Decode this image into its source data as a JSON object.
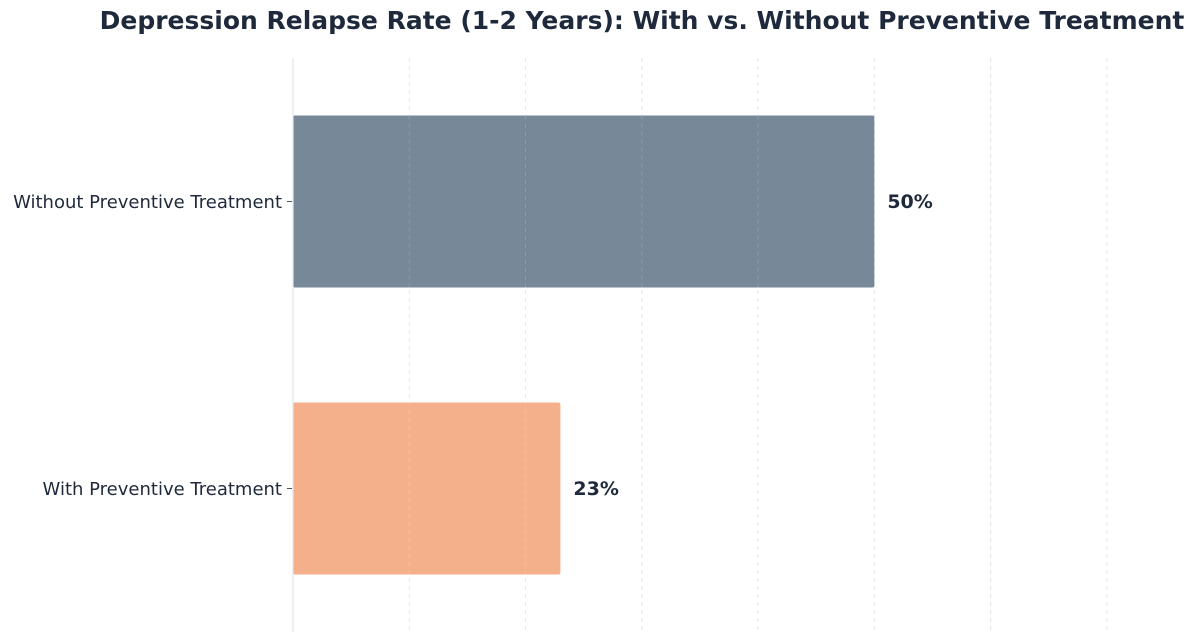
{
  "chart_data": {
    "type": "bar",
    "orientation": "horizontal",
    "title": "Depression Relapse Rate (1-2 Years): With vs. Without Preventive Treatment",
    "xlabel": "",
    "ylabel": "",
    "categories": [
      "Without Preventive Treatment",
      "With Preventive Treatment"
    ],
    "values": [
      50,
      23
    ],
    "value_labels": [
      "50%",
      "23%"
    ],
    "colors": [
      "#778899",
      "#f4af8b"
    ],
    "xlim": [
      0,
      75
    ],
    "grid": true,
    "legend": "none"
  }
}
